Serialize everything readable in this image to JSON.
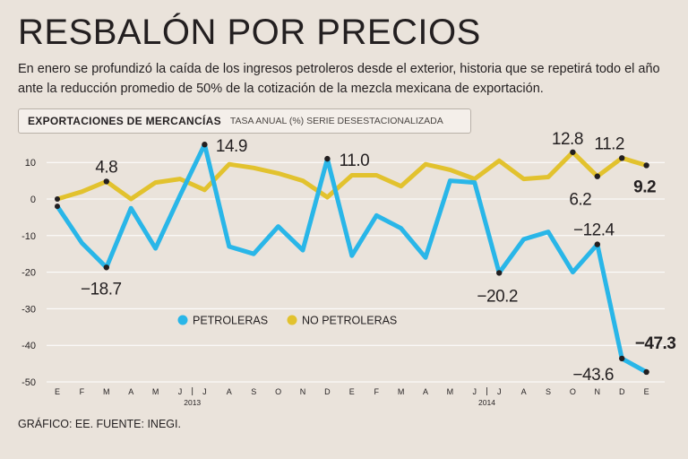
{
  "header": {
    "title": "RESBALÓN POR PRECIOS",
    "description": "En enero se profundizó la caída de los ingresos petroleros desde el exterior, historia que se repetirá todo el año ante la reducción promedio de 50% de la cotización de la mezcla mexicana de exportación."
  },
  "subheader": {
    "title": "EXPORTACIONES DE MERCANCÍAS",
    "note": "TASA ANUAL (%) SERIE DESESTACIONALIZADA"
  },
  "colors": {
    "petroleras": "#29b6e8",
    "no_petroleras": "#e2c22e",
    "background": "#eae3db"
  },
  "chart_data": {
    "type": "line",
    "title": "EXPORTACIONES DE MERCANCÍAS",
    "ylabel": "TASA ANUAL (%) SERIE DESESTACIONALIZADA",
    "ylim": [
      -50,
      15
    ],
    "yticks": [
      10,
      0,
      -10,
      -20,
      -30,
      -40,
      -50
    ],
    "categories": [
      "E",
      "F",
      "M",
      "A",
      "M",
      "J",
      "J",
      "A",
      "S",
      "O",
      "N",
      "D",
      "E",
      "F",
      "M",
      "A",
      "M",
      "J",
      "J",
      "A",
      "S",
      "O",
      "N",
      "D",
      "E"
    ],
    "year_labels": [
      {
        "label": "2013",
        "index": 5.5
      },
      {
        "label": "2014",
        "index": 17.5
      }
    ],
    "legend": [
      "PETROLERAS",
      "NO PETROLERAS"
    ],
    "legend_position": "lower-middle",
    "series": [
      {
        "name": "PETROLERAS",
        "values": [
          -2,
          -12,
          -18.7,
          -2.5,
          -13.5,
          1,
          14.9,
          -13,
          -15,
          -7.5,
          -14,
          11.0,
          -15.5,
          -4.5,
          -8,
          -16,
          5,
          4.5,
          -20.2,
          -11,
          -9,
          -20,
          -12.4,
          -43.6,
          -47.3
        ]
      },
      {
        "name": "NO PETROLERAS",
        "values": [
          0,
          2,
          4.8,
          0,
          4.5,
          5.5,
          2.5,
          9.5,
          8.5,
          7,
          5,
          0.5,
          6.5,
          6.5,
          3.5,
          9.5,
          8,
          5.5,
          10.5,
          5.5,
          6,
          12.8,
          6.2,
          11.2,
          9.2
        ]
      }
    ],
    "annotations": [
      {
        "series": "NO PETROLERAS",
        "index": 2,
        "label": "4.8"
      },
      {
        "series": "PETROLERAS",
        "index": 2,
        "label": "−18.7"
      },
      {
        "series": "PETROLERAS",
        "index": 6,
        "label": "14.9"
      },
      {
        "series": "PETROLERAS",
        "index": 11,
        "label": "11.0"
      },
      {
        "series": "PETROLERAS",
        "index": 18,
        "label": "−20.2"
      },
      {
        "series": "NO PETROLERAS",
        "index": 21,
        "label": "12.8"
      },
      {
        "series": "NO PETROLERAS",
        "index": 22,
        "label": "6.2"
      },
      {
        "series": "PETROLERAS",
        "index": 22,
        "label": "−12.4"
      },
      {
        "series": "NO PETROLERAS",
        "index": 23,
        "label": "11.2"
      },
      {
        "series": "NO PETROLERAS",
        "index": 24,
        "label": "9.2"
      },
      {
        "series": "PETROLERAS",
        "index": 23,
        "label": "−43.6"
      },
      {
        "series": "PETROLERAS",
        "index": 24,
        "label": "−47.3"
      }
    ]
  },
  "footer": {
    "source": "GRÁFICO: EE. FUENTE: INEGI."
  }
}
